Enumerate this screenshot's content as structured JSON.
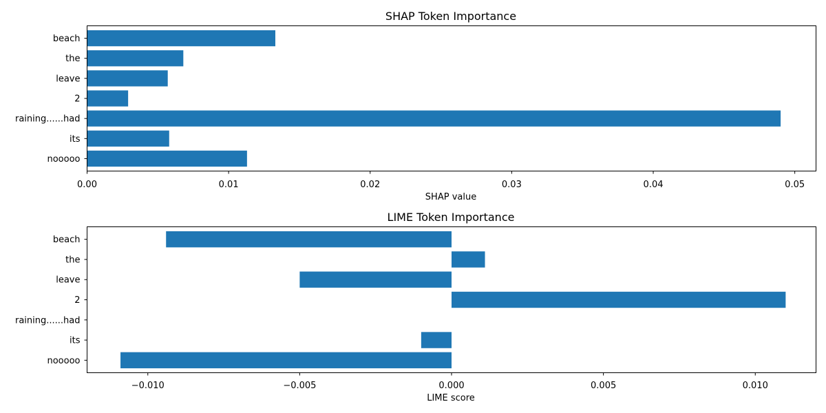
{
  "chart_data": [
    {
      "type": "bar",
      "orientation": "horizontal",
      "title": "SHAP Token Importance",
      "xlabel": "SHAP value",
      "ylabel": "",
      "categories": [
        "beach",
        "the",
        "leave",
        "2",
        "raining......had",
        "its",
        "nooooo"
      ],
      "values": [
        0.0133,
        0.0068,
        0.0057,
        0.0029,
        0.049,
        0.0058,
        0.0113
      ],
      "xlim": [
        0.0,
        0.0515
      ],
      "xticks": [
        0.0,
        0.01,
        0.02,
        0.03,
        0.04,
        0.05
      ],
      "xtick_labels": [
        "0.00",
        "0.01",
        "0.02",
        "0.03",
        "0.04",
        "0.05"
      ],
      "bar_color": "#1f77b4",
      "grid": false
    },
    {
      "type": "bar",
      "orientation": "horizontal",
      "title": "LIME Token Importance",
      "xlabel": "LIME score",
      "ylabel": "",
      "categories": [
        "beach",
        "the",
        "leave",
        "2",
        "raining......had",
        "its",
        "nooooo"
      ],
      "values": [
        -0.0094,
        0.0011,
        -0.005,
        0.011,
        0.0,
        -0.001,
        -0.0109
      ],
      "xlim": [
        -0.012,
        0.012
      ],
      "xticks": [
        -0.01,
        -0.005,
        0.0,
        0.005,
        0.01
      ],
      "xtick_labels": [
        "−0.010",
        "−0.005",
        "0.000",
        "0.005",
        "0.010"
      ],
      "bar_color": "#1f77b4",
      "grid": false
    }
  ]
}
